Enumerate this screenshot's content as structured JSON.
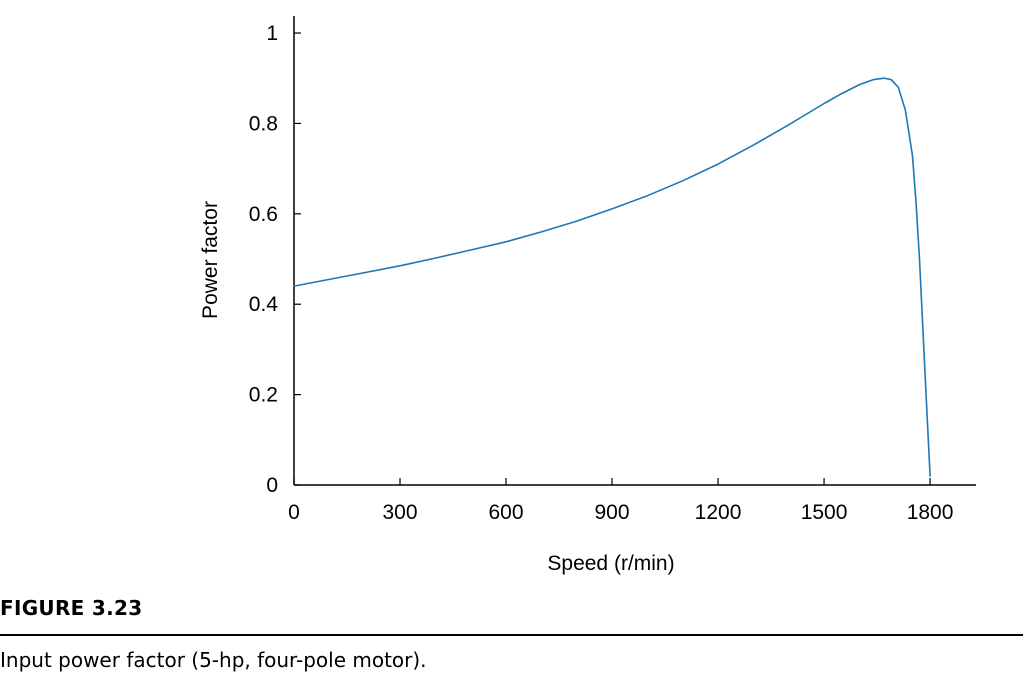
{
  "figure": {
    "label": "FIGURE 3.23",
    "caption": "Input power factor (5-hp, four-pole motor)."
  },
  "chart_data": {
    "type": "line",
    "xlabel": "Speed (r/min)",
    "ylabel": "Power factor",
    "xlim": [
      0,
      1930
    ],
    "ylim": [
      0,
      1.02
    ],
    "xticks": [
      0,
      300,
      600,
      900,
      1200,
      1500,
      1800
    ],
    "xtick_labels": [
      "0",
      "300",
      "600",
      "900",
      "1200",
      "1500",
      "1800"
    ],
    "yticks": [
      0,
      0.2,
      0.4,
      0.6,
      0.8,
      1
    ],
    "ytick_labels": [
      "0",
      "0.2",
      "0.4",
      "0.6",
      "0.8",
      "1"
    ],
    "grid": false,
    "line_color": "#1f77b4",
    "series": [
      {
        "x": [
          0,
          100,
          200,
          300,
          400,
          500,
          600,
          700,
          800,
          900,
          1000,
          1100,
          1200,
          1300,
          1400,
          1500,
          1550,
          1600,
          1640,
          1670,
          1690,
          1710,
          1730,
          1750,
          1760,
          1770,
          1780,
          1790,
          1795,
          1800
        ],
        "y": [
          0.44,
          0.455,
          0.47,
          0.485,
          0.502,
          0.52,
          0.538,
          0.56,
          0.584,
          0.611,
          0.64,
          0.673,
          0.71,
          0.752,
          0.797,
          0.844,
          0.866,
          0.886,
          0.897,
          0.9,
          0.897,
          0.88,
          0.83,
          0.73,
          0.63,
          0.5,
          0.34,
          0.18,
          0.1,
          0.02
        ]
      }
    ]
  }
}
